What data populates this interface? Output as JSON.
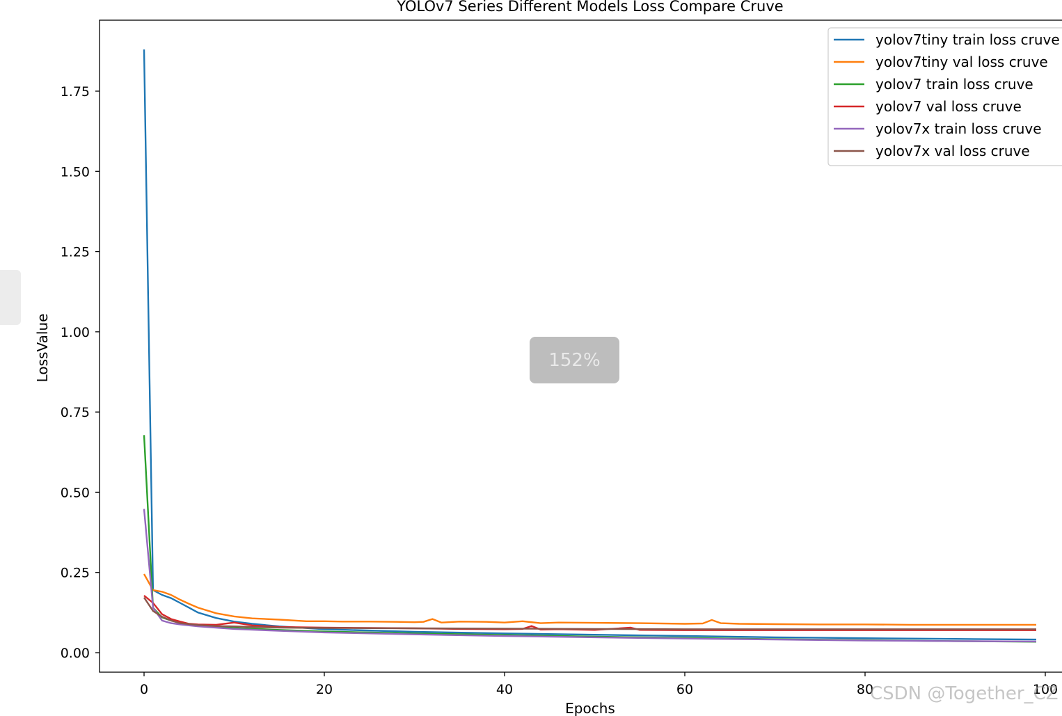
{
  "ui": {
    "zoom_label": "152%",
    "watermark": "CSDN @Together_CZ"
  },
  "chart_data": {
    "type": "line",
    "title": "YOLOv7 Series Different Models Loss Compare Cruve",
    "xlabel": "Epochs",
    "ylabel": "LossValue",
    "xlim": [
      -5,
      100
    ],
    "ylim": [
      -0.06,
      1.98
    ],
    "xticks": [
      0,
      20,
      40,
      60,
      80,
      100
    ],
    "xtick_labels": [
      "0",
      "20",
      "40",
      "60",
      "80",
      "100"
    ],
    "yticks": [
      0,
      0.25,
      0.5,
      0.75,
      1.0,
      1.25,
      1.5,
      1.75
    ],
    "ytick_labels": [
      "0.00",
      "0.25",
      "0.50",
      "0.75",
      "1.00",
      "1.25",
      "1.50",
      "1.75"
    ],
    "grid": false,
    "legend_position": "top-right",
    "series": [
      {
        "name": "yolov7tiny train loss cruve",
        "color": "#1f77b4",
        "x": [
          0,
          1,
          2,
          3,
          4,
          5,
          6,
          8,
          10,
          12,
          15,
          20,
          30,
          40,
          50,
          60,
          70,
          80,
          90,
          99
        ],
        "y": [
          1.88,
          0.195,
          0.18,
          0.17,
          0.155,
          0.14,
          0.125,
          0.108,
          0.097,
          0.09,
          0.082,
          0.073,
          0.065,
          0.06,
          0.056,
          0.052,
          0.048,
          0.045,
          0.043,
          0.041
        ]
      },
      {
        "name": "yolov7tiny val loss cruve",
        "color": "#ff7f0e",
        "x": [
          0,
          1,
          2,
          3,
          4,
          5,
          6,
          8,
          10,
          12,
          15,
          18,
          20,
          22,
          25,
          28,
          30,
          31,
          32,
          33,
          35,
          38,
          40,
          42,
          44,
          46,
          50,
          55,
          60,
          62,
          63,
          64,
          66,
          70,
          75,
          80,
          85,
          90,
          95,
          99
        ],
        "y": [
          0.245,
          0.195,
          0.19,
          0.18,
          0.165,
          0.152,
          0.14,
          0.123,
          0.113,
          0.107,
          0.103,
          0.098,
          0.098,
          0.097,
          0.097,
          0.096,
          0.095,
          0.096,
          0.105,
          0.094,
          0.097,
          0.096,
          0.094,
          0.098,
          0.092,
          0.094,
          0.093,
          0.092,
          0.09,
          0.091,
          0.102,
          0.092,
          0.09,
          0.089,
          0.088,
          0.088,
          0.087,
          0.087,
          0.087,
          0.087
        ]
      },
      {
        "name": "yolov7 train loss cruve",
        "color": "#2ca02c",
        "x": [
          0,
          1,
          2,
          3,
          4,
          6,
          8,
          10,
          15,
          20,
          30,
          40,
          50,
          60,
          70,
          80,
          90,
          99
        ],
        "y": [
          0.678,
          0.14,
          0.11,
          0.1,
          0.093,
          0.085,
          0.08,
          0.077,
          0.071,
          0.066,
          0.06,
          0.055,
          0.05,
          0.046,
          0.042,
          0.039,
          0.036,
          0.034
        ]
      },
      {
        "name": "yolov7 val loss cruve",
        "color": "#d62728",
        "x": [
          0,
          1,
          2,
          3,
          4,
          5,
          6,
          8,
          10,
          12,
          15,
          20,
          25,
          30,
          35,
          40,
          42,
          43,
          44,
          46,
          50,
          54,
          55,
          60,
          65,
          70,
          80,
          90,
          99
        ],
        "y": [
          0.178,
          0.155,
          0.12,
          0.105,
          0.097,
          0.09,
          0.088,
          0.087,
          0.094,
          0.085,
          0.08,
          0.078,
          0.077,
          0.076,
          0.074,
          0.073,
          0.074,
          0.083,
          0.072,
          0.073,
          0.071,
          0.078,
          0.071,
          0.07,
          0.07,
          0.07,
          0.07,
          0.07,
          0.07
        ]
      },
      {
        "name": "yolov7x train loss cruve",
        "color": "#9467bd",
        "x": [
          0,
          1,
          2,
          3,
          4,
          6,
          8,
          10,
          15,
          20,
          30,
          40,
          50,
          60,
          70,
          80,
          90,
          99
        ],
        "y": [
          0.448,
          0.14,
          0.1,
          0.092,
          0.088,
          0.082,
          0.078,
          0.074,
          0.068,
          0.063,
          0.057,
          0.052,
          0.048,
          0.044,
          0.041,
          0.038,
          0.036,
          0.035
        ]
      },
      {
        "name": "yolov7x val loss cruve",
        "color": "#8c564b",
        "x": [
          0,
          1,
          2,
          3,
          4,
          6,
          8,
          10,
          12,
          15,
          20,
          30,
          40,
          50,
          60,
          70,
          80,
          90,
          99
        ],
        "y": [
          0.172,
          0.13,
          0.112,
          0.1,
          0.092,
          0.086,
          0.083,
          0.082,
          0.08,
          0.078,
          0.077,
          0.076,
          0.075,
          0.074,
          0.073,
          0.073,
          0.073,
          0.073,
          0.073
        ]
      }
    ]
  }
}
